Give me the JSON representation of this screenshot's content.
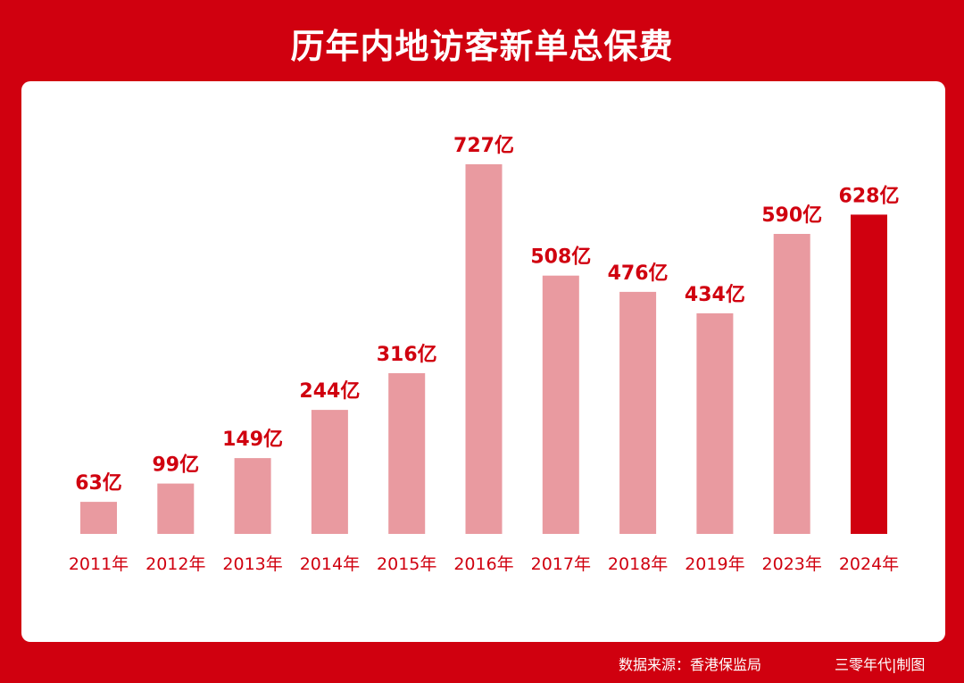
{
  "colors": {
    "background": "#d0000f",
    "panel": "#ffffff",
    "bar": "#e99aa0",
    "highlight_bar": "#d0000f",
    "label": "#d0000f",
    "title": "#ffffff"
  },
  "chart_data": {
    "type": "bar",
    "title": "历年内地访客新单总保费",
    "categories": [
      "2011年",
      "2012年",
      "2013年",
      "2014年",
      "2015年",
      "2016年",
      "2017年",
      "2018年",
      "2019年",
      "2023年",
      "2024年"
    ],
    "values": [
      63,
      99,
      149,
      244,
      316,
      727,
      508,
      476,
      434,
      590,
      628
    ],
    "data_labels": [
      "63亿",
      "99亿",
      "149亿",
      "244亿",
      "316亿",
      "727亿",
      "508亿",
      "476亿",
      "434亿",
      "590亿",
      "628亿"
    ],
    "unit": "亿",
    "highlight": "2024年",
    "ylim": [
      0,
      727
    ],
    "grid": false,
    "legend": "none"
  },
  "footer": {
    "source": "数据来源：香港保监局",
    "credit": "三零年代|制图"
  }
}
